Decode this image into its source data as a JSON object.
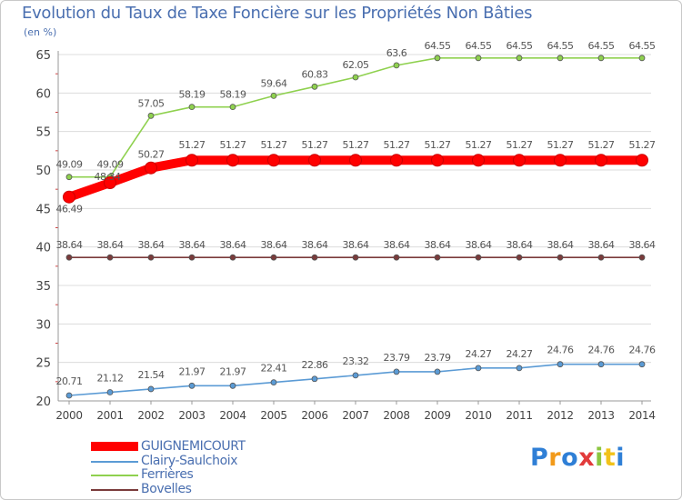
{
  "chart_data": {
    "type": "line",
    "title": "Evolution du Taux de Taxe Foncière sur les Propriétés Non Bâties",
    "ylabel": "(en %)",
    "xlabel": "",
    "ylim": [
      20,
      65
    ],
    "yticks": [
      "20",
      "25",
      "30",
      "35",
      "40",
      "45",
      "50",
      "55",
      "60",
      "65"
    ],
    "categories": [
      "2000",
      "2001",
      "2002",
      "2003",
      "2004",
      "2005",
      "2006",
      "2007",
      "2008",
      "2009",
      "2010",
      "2011",
      "2012",
      "2013",
      "2014"
    ],
    "grid": "horizontal",
    "legend_position": "bottom-left",
    "series": [
      {
        "name": "GUIGNEMICOURT",
        "color": "#ff0000",
        "values": [
          46.49,
          48.34,
          50.27,
          51.27,
          51.27,
          51.27,
          51.27,
          51.27,
          51.27,
          51.27,
          51.27,
          51.27,
          51.27,
          51.27,
          51.27
        ],
        "labels": [
          "46.49",
          "48.34",
          "50.27",
          "51.27",
          "51.27",
          "51.27",
          "51.27",
          "51.27",
          "51.27",
          "51.27",
          "51.27",
          "51.27",
          "51.27",
          "51.27",
          "51.27"
        ]
      },
      {
        "name": "Clairy-Saulchoix",
        "color": "#5b9bd5",
        "values": [
          20.71,
          21.12,
          21.54,
          21.97,
          21.97,
          22.41,
          22.86,
          23.32,
          23.79,
          23.79,
          24.27,
          24.27,
          24.76,
          24.76,
          24.76
        ],
        "labels": [
          "20.71",
          "21.12",
          "21.54",
          "21.97",
          "21.97",
          "22.41",
          "22.86",
          "23.32",
          "23.79",
          "23.79",
          "24.27",
          "24.27",
          "24.76",
          "24.76",
          "24.76"
        ]
      },
      {
        "name": "Ferrières",
        "color": "#8fd14f",
        "values": [
          49.09,
          49.09,
          57.05,
          58.19,
          58.19,
          59.64,
          60.83,
          62.05,
          63.6,
          64.55,
          64.55,
          64.55,
          64.55,
          64.55,
          64.55
        ],
        "labels": [
          "49.09",
          "49.09",
          "57.05",
          "58.19",
          "58.19",
          "59.64",
          "60.83",
          "62.05",
          "63.6",
          "64.55",
          "64.55",
          "64.55",
          "64.55",
          "64.55",
          "64.55"
        ]
      },
      {
        "name": "Bovelles",
        "color": "#7a3b3b",
        "values": [
          38.64,
          38.64,
          38.64,
          38.64,
          38.64,
          38.64,
          38.64,
          38.64,
          38.64,
          38.64,
          38.64,
          38.64,
          38.64,
          38.64,
          38.64
        ],
        "labels": [
          "38.64",
          "38.64",
          "38.64",
          "38.64",
          "38.64",
          "38.64",
          "38.64",
          "38.64",
          "38.64",
          "38.64",
          "38.64",
          "38.64",
          "38.64",
          "38.64",
          "38.64"
        ]
      }
    ]
  },
  "logo": {
    "text": "Proxiti",
    "colors": [
      "#2f7fd6",
      "#f29a1a",
      "#2f7fd6",
      "#e23b3b",
      "#8cc63f",
      "#f2c21a",
      "#2f7fd6"
    ]
  }
}
